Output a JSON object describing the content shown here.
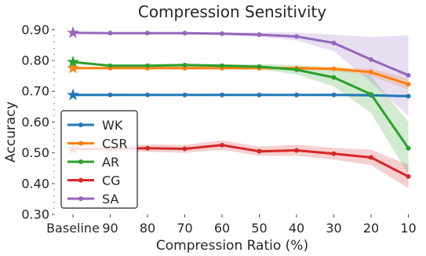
{
  "chart_data": {
    "type": "line",
    "title": "Compression Sensitivity",
    "xlabel": "Compression Ratio (%)",
    "ylabel": "Accuracy",
    "categories": [
      "Baseline",
      "90",
      "80",
      "70",
      "60",
      "50",
      "40",
      "30",
      "20",
      "10"
    ],
    "ylim": [
      0.3,
      0.92
    ],
    "yticks": [
      "0.30",
      "0.40",
      "0.50",
      "0.60",
      "0.70",
      "0.80",
      "0.90"
    ],
    "ytick_values": [
      0.3,
      0.4,
      0.5,
      0.6,
      0.7,
      0.8,
      0.9
    ],
    "grid": false,
    "legend_position": "lower-left",
    "series": [
      {
        "name": "WK",
        "color": "#1f77b4",
        "values": [
          0.688,
          0.688,
          0.688,
          0.688,
          0.688,
          0.688,
          0.688,
          0.688,
          0.687,
          0.684
        ],
        "lower": [
          0.688,
          0.687,
          0.687,
          0.687,
          0.687,
          0.686,
          0.686,
          0.686,
          0.684,
          0.68
        ],
        "upper": [
          0.688,
          0.689,
          0.689,
          0.689,
          0.689,
          0.69,
          0.69,
          0.69,
          0.69,
          0.688
        ]
      },
      {
        "name": "CSR",
        "color": "#ff7f0e",
        "values": [
          0.775,
          0.775,
          0.775,
          0.775,
          0.775,
          0.775,
          0.775,
          0.773,
          0.762,
          0.723
        ],
        "lower": [
          0.775,
          0.772,
          0.772,
          0.772,
          0.772,
          0.771,
          0.77,
          0.766,
          0.75,
          0.705
        ],
        "upper": [
          0.775,
          0.778,
          0.778,
          0.778,
          0.778,
          0.779,
          0.78,
          0.78,
          0.774,
          0.741
        ]
      },
      {
        "name": "AR",
        "color": "#2ca02c",
        "values": [
          0.795,
          0.783,
          0.783,
          0.785,
          0.783,
          0.78,
          0.77,
          0.745,
          0.69,
          0.515
        ],
        "lower": [
          0.795,
          0.778,
          0.778,
          0.779,
          0.777,
          0.772,
          0.755,
          0.715,
          0.63,
          0.43
        ],
        "upper": [
          0.795,
          0.788,
          0.788,
          0.791,
          0.789,
          0.788,
          0.785,
          0.775,
          0.75,
          0.6
        ]
      },
      {
        "name": "CG",
        "color": "#d62728",
        "values": [
          0.513,
          0.513,
          0.515,
          0.513,
          0.525,
          0.505,
          0.508,
          0.497,
          0.485,
          0.423
        ],
        "lower": [
          0.513,
          0.503,
          0.503,
          0.5,
          0.51,
          0.49,
          0.49,
          0.478,
          0.46,
          0.385
        ],
        "upper": [
          0.513,
          0.523,
          0.527,
          0.526,
          0.54,
          0.52,
          0.526,
          0.516,
          0.51,
          0.461
        ]
      },
      {
        "name": "SA",
        "color": "#9467bd",
        "values": [
          0.89,
          0.889,
          0.889,
          0.889,
          0.887,
          0.884,
          0.878,
          0.857,
          0.803,
          0.752
        ],
        "lower": [
          0.89,
          0.887,
          0.887,
          0.886,
          0.883,
          0.877,
          0.865,
          0.83,
          0.73,
          0.62
        ],
        "upper": [
          0.89,
          0.891,
          0.891,
          0.892,
          0.891,
          0.891,
          0.891,
          0.884,
          0.876,
          0.882
        ]
      }
    ]
  }
}
